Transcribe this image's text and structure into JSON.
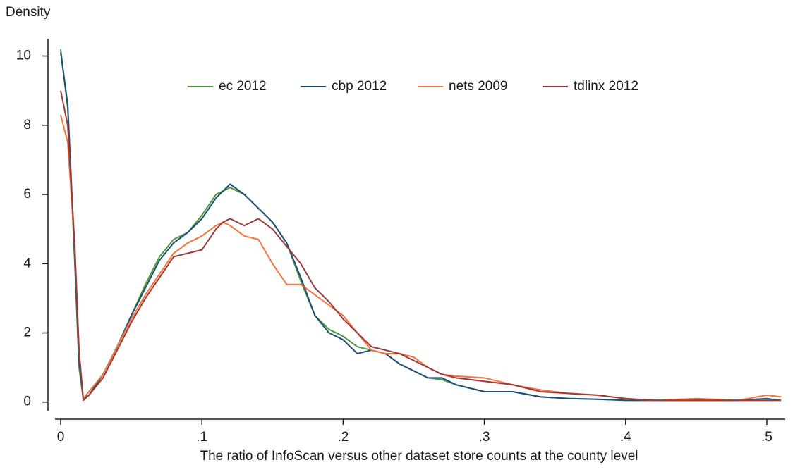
{
  "chart_data": {
    "type": "line",
    "y_label": "Density",
    "x_label": "The ratio of InfoScan versus other dataset store counts at the county level",
    "x": [
      0,
      0.005,
      0.01,
      0.013,
      0.016,
      0.02,
      0.03,
      0.04,
      0.05,
      0.06,
      0.07,
      0.08,
      0.09,
      0.1,
      0.11,
      0.115,
      0.12,
      0.13,
      0.14,
      0.15,
      0.16,
      0.17,
      0.18,
      0.19,
      0.2,
      0.21,
      0.22,
      0.23,
      0.24,
      0.25,
      0.26,
      0.27,
      0.28,
      0.3,
      0.32,
      0.34,
      0.36,
      0.38,
      0.4,
      0.42,
      0.45,
      0.48,
      0.5,
      0.51
    ],
    "series": [
      {
        "name": "ec 2012",
        "color": "#4a9a3c",
        "values": [
          10.2,
          8.5,
          4.0,
          1.0,
          0.1,
          0.2,
          0.8,
          1.6,
          2.5,
          3.4,
          4.2,
          4.7,
          4.9,
          5.4,
          6.0,
          6.1,
          6.2,
          6.0,
          5.6,
          5.2,
          4.6,
          3.5,
          2.5,
          2.1,
          1.9,
          1.6,
          1.5,
          1.4,
          1.1,
          0.9,
          0.7,
          0.65,
          0.5,
          0.3,
          0.3,
          0.15,
          0.1,
          0.08,
          0.05,
          0.05,
          0.05,
          0.05,
          0.05,
          0.05
        ]
      },
      {
        "name": "cbp 2012",
        "color": "#1f4e79",
        "values": [
          10.1,
          8.6,
          4.2,
          1.2,
          0.1,
          0.2,
          0.8,
          1.6,
          2.5,
          3.3,
          4.1,
          4.6,
          4.9,
          5.3,
          5.9,
          6.1,
          6.3,
          6.0,
          5.6,
          5.2,
          4.6,
          3.6,
          2.5,
          2.0,
          1.8,
          1.4,
          1.5,
          1.4,
          1.1,
          0.9,
          0.7,
          0.7,
          0.5,
          0.3,
          0.3,
          0.15,
          0.1,
          0.08,
          0.05,
          0.05,
          0.05,
          0.05,
          0.1,
          0.05
        ]
      },
      {
        "name": "nets 2009",
        "color": "#f4743b",
        "values": [
          8.3,
          7.5,
          4.5,
          1.5,
          0.1,
          0.3,
          0.8,
          1.6,
          2.4,
          3.1,
          3.7,
          4.3,
          4.6,
          4.8,
          5.1,
          5.2,
          5.1,
          4.8,
          4.7,
          4.0,
          3.4,
          3.4,
          3.1,
          2.8,
          2.5,
          2.0,
          1.5,
          1.4,
          1.4,
          1.3,
          1.0,
          0.8,
          0.75,
          0.7,
          0.5,
          0.35,
          0.25,
          0.2,
          0.1,
          0.05,
          0.1,
          0.05,
          0.2,
          0.15
        ]
      },
      {
        "name": "tdlinx 2012",
        "color": "#9b3a3a",
        "values": [
          9.0,
          8.0,
          4.5,
          1.5,
          0.05,
          0.2,
          0.7,
          1.5,
          2.3,
          3.0,
          3.6,
          4.2,
          4.3,
          4.4,
          5.0,
          5.2,
          5.3,
          5.1,
          5.3,
          5.0,
          4.5,
          4.0,
          3.3,
          2.9,
          2.4,
          2.0,
          1.6,
          1.5,
          1.4,
          1.2,
          1.0,
          0.8,
          0.7,
          0.6,
          0.5,
          0.3,
          0.25,
          0.2,
          0.1,
          0.05,
          0.05,
          0.05,
          0.05,
          0.05
        ]
      }
    ],
    "xlim": [
      -0.004,
      0.513
    ],
    "ylim": [
      -0.25,
      10.5
    ],
    "xticks": [
      0,
      {
        "value": 0.1,
        "label": ".1"
      },
      {
        "value": 0.2,
        "label": ".2"
      },
      {
        "value": 0.3,
        "label": ".3"
      },
      {
        "value": 0.4,
        "label": ".4"
      },
      {
        "value": 0.5,
        "label": ".5"
      }
    ],
    "yticks": [
      0,
      2,
      4,
      6,
      8,
      10
    ],
    "grid": false,
    "legend": "top"
  }
}
